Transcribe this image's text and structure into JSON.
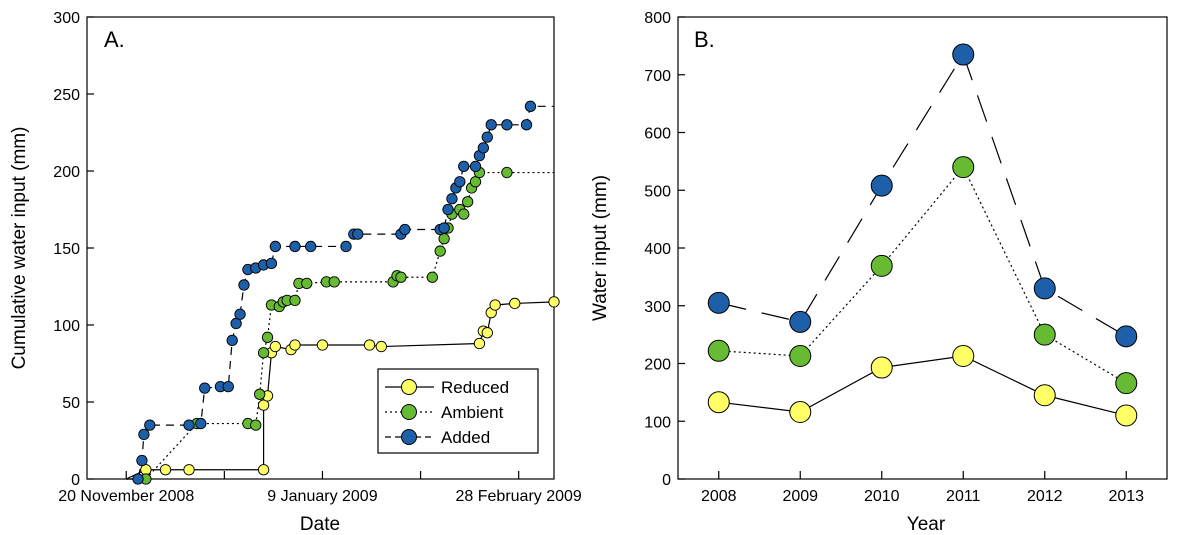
{
  "chart_data": [
    {
      "type": "line",
      "panel_label": "A.",
      "xlabel": "Date",
      "ylabel": "Cumulative water input (mm)",
      "x_ticks": [
        "20 November 2008",
        "9 January 2009",
        "28 February 2009"
      ],
      "y_ticks": [
        0,
        50,
        100,
        150,
        200,
        250,
        300
      ],
      "ylim": [
        0,
        300
      ],
      "legend_position": "bottom-right",
      "series": [
        {
          "name": "Reduced",
          "color": "#ffff66",
          "dash": "",
          "points": [
            [
              10,
              0
            ],
            [
              15,
              6
            ],
            [
              20,
              6
            ],
            [
              26,
              6
            ],
            [
              45,
              6
            ],
            [
              45,
              48
            ],
            [
              46,
              54
            ],
            [
              47,
              82
            ],
            [
              48,
              86
            ],
            [
              52,
              84
            ],
            [
              53,
              87
            ],
            [
              60,
              87
            ],
            [
              72,
              87
            ],
            [
              75,
              86
            ],
            [
              100,
              88
            ],
            [
              101,
              96
            ],
            [
              102,
              95
            ],
            [
              103,
              108
            ],
            [
              104,
              113
            ],
            [
              109,
              114
            ],
            [
              119,
              115
            ]
          ],
          "step_end": 119
        },
        {
          "name": "Ambient",
          "color": "#66bb33",
          "dash": "2,3",
          "points": [
            [
              10,
              0
            ],
            [
              15,
              0
            ],
            [
              28,
              36
            ],
            [
              41,
              36
            ],
            [
              43,
              35
            ],
            [
              44,
              55
            ],
            [
              45,
              82
            ],
            [
              46,
              92
            ],
            [
              47,
              113
            ],
            [
              49,
              112
            ],
            [
              50,
              115
            ],
            [
              51,
              116
            ],
            [
              53,
              116
            ],
            [
              54,
              127
            ],
            [
              56,
              127
            ],
            [
              61,
              128
            ],
            [
              63,
              128
            ],
            [
              78,
              128
            ],
            [
              79,
              132
            ],
            [
              80,
              131
            ],
            [
              88,
              131
            ],
            [
              90,
              148
            ],
            [
              91,
              156
            ],
            [
              92,
              163
            ],
            [
              93,
              172
            ],
            [
              95,
              175
            ],
            [
              96,
              172
            ],
            [
              97,
              180
            ],
            [
              98,
              189
            ],
            [
              99,
              193
            ],
            [
              100,
              199
            ],
            [
              107,
              199
            ]
          ],
          "step_end": 119
        },
        {
          "name": "Added",
          "color": "#1d5fa8",
          "dash": "8,6",
          "points": [
            [
              10,
              0
            ],
            [
              13,
              0
            ],
            [
              14,
              12
            ],
            [
              14.5,
              29
            ],
            [
              16,
              35
            ],
            [
              26,
              35
            ],
            [
              29,
              36
            ],
            [
              30,
              59
            ],
            [
              34,
              60
            ],
            [
              36,
              60
            ],
            [
              37,
              90
            ],
            [
              38,
              101
            ],
            [
              39,
              107
            ],
            [
              40,
              126
            ],
            [
              41,
              136
            ],
            [
              43,
              137
            ],
            [
              45,
              139
            ],
            [
              47,
              140
            ],
            [
              48,
              151
            ],
            [
              53,
              151
            ],
            [
              57,
              151
            ],
            [
              66,
              151
            ],
            [
              68,
              159
            ],
            [
              69,
              159
            ],
            [
              80,
              159
            ],
            [
              81,
              162
            ],
            [
              90,
              162
            ],
            [
              91,
              163
            ],
            [
              92,
              175
            ],
            [
              93,
              182
            ],
            [
              94,
              189
            ],
            [
              95,
              193
            ],
            [
              96,
              203
            ],
            [
              99,
              203
            ],
            [
              100,
              210
            ],
            [
              101,
              215
            ],
            [
              102,
              222
            ],
            [
              103,
              230
            ],
            [
              107,
              230
            ],
            [
              112,
              230
            ],
            [
              113,
              242
            ]
          ],
          "step_end": 119
        }
      ]
    },
    {
      "type": "line",
      "panel_label": "B.",
      "xlabel": "Year",
      "ylabel": "Water input (mm)",
      "categories": [
        "2008",
        "2009",
        "2010",
        "2011",
        "2012",
        "2013"
      ],
      "y_ticks": [
        0,
        100,
        200,
        300,
        400,
        500,
        600,
        700,
        800
      ],
      "ylim": [
        0,
        800
      ],
      "series": [
        {
          "name": "Reduced",
          "color": "#ffff66",
          "dash": "",
          "values": [
            133,
            116,
            193,
            213,
            145,
            110
          ]
        },
        {
          "name": "Ambient",
          "color": "#66bb33",
          "dash": "2,3",
          "values": [
            222,
            213,
            369,
            540,
            250,
            166
          ]
        },
        {
          "name": "Added",
          "color": "#1d5fa8",
          "dash": "28,16",
          "values": [
            305,
            272,
            508,
            735,
            330,
            247
          ]
        }
      ]
    }
  ]
}
